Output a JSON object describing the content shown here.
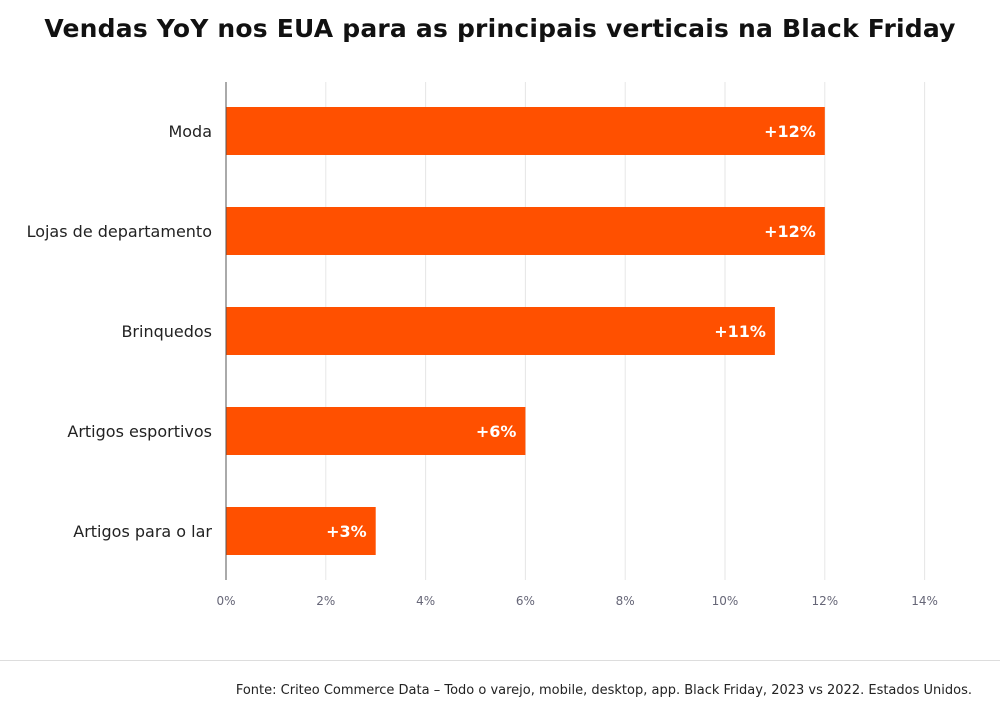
{
  "chart_data": {
    "type": "bar",
    "orientation": "horizontal",
    "title": "Vendas YoY nos EUA para as principais verticais na Black Friday",
    "categories": [
      "Moda",
      "Lojas de departamento",
      "Brinquedos",
      "Artigos esportivos",
      "Artigos para o lar"
    ],
    "values": [
      12,
      12,
      11,
      6,
      3
    ],
    "value_labels": [
      "+12%",
      "+12%",
      "+11%",
      "+6%",
      "+3%"
    ],
    "x_ticks": [
      "0%",
      "2%",
      "4%",
      "6%",
      "8%",
      "10%",
      "12%",
      "14%"
    ],
    "xlim": [
      0,
      14
    ],
    "grid": true,
    "bar_color": "#FF5000",
    "xlabel": "",
    "ylabel": ""
  },
  "source": "Fonte: Criteo Commerce Data – Todo o varejo, mobile, desktop, app. Black Friday, 2023 vs 2022. Estados Unidos."
}
